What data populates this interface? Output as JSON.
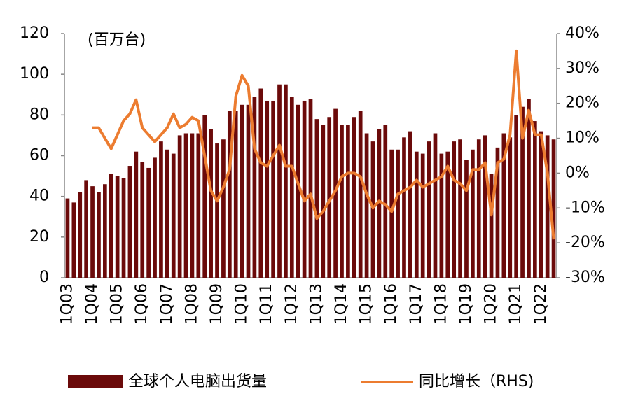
{
  "chart_data": {
    "type": "bar_line",
    "unit_label": "(百万台)",
    "categories": [
      "1Q03",
      null,
      null,
      null,
      "1Q04",
      null,
      null,
      null,
      "1Q05",
      null,
      null,
      null,
      "1Q06",
      null,
      null,
      null,
      "1Q07",
      null,
      null,
      null,
      "1Q08",
      null,
      null,
      null,
      "1Q09",
      null,
      null,
      null,
      "1Q10",
      null,
      null,
      null,
      "1Q11",
      null,
      null,
      null,
      "1Q12",
      null,
      null,
      null,
      "1Q13",
      null,
      null,
      null,
      "1Q14",
      null,
      null,
      null,
      "1Q15",
      null,
      null,
      null,
      "1Q16",
      null,
      null,
      null,
      "1Q17",
      null,
      null,
      null,
      "1Q18",
      null,
      null,
      null,
      "1Q19",
      null,
      null,
      null,
      "1Q20",
      null,
      null,
      null,
      "1Q21",
      null,
      null,
      null,
      "1Q22",
      null,
      null
    ],
    "series": [
      {
        "name": "全球个人电脑出货量",
        "color": "#6b0a0a",
        "type": "bar",
        "values": [
          39,
          37,
          42,
          48,
          45,
          42,
          46,
          51,
          50,
          49,
          55,
          62,
          57,
          54,
          59,
          67,
          63,
          61,
          70,
          71,
          71,
          71,
          80,
          73,
          66,
          68,
          82,
          82,
          85,
          85,
          89,
          93,
          87,
          87,
          95,
          95,
          89,
          85,
          87,
          88,
          78,
          75,
          79,
          83,
          75,
          75,
          79,
          82,
          71,
          67,
          73,
          75,
          63,
          63,
          69,
          72,
          62,
          61,
          67,
          71,
          61,
          62,
          67,
          68,
          58,
          63,
          68,
          70,
          51,
          64,
          71,
          69,
          80,
          84,
          88,
          77,
          72,
          70,
          68
        ]
      },
      {
        "name": "同比增长（RHS)",
        "color": "#ec7c30",
        "type": "line",
        "axis": "y2",
        "values": [
          null,
          null,
          null,
          null,
          13,
          13,
          10,
          7,
          11,
          15,
          17,
          21,
          13,
          11,
          9,
          11,
          13,
          17,
          13,
          14,
          16,
          15,
          5,
          -5,
          -8,
          -4,
          1,
          22,
          28,
          25,
          7,
          3,
          2,
          5,
          8,
          2,
          2,
          -3,
          -8,
          -6,
          -13,
          -11,
          -8,
          -5,
          -1,
          0,
          0,
          -1,
          -6,
          -10,
          -8,
          -9,
          -11,
          -6,
          -5,
          -4,
          -2,
          -4,
          -3,
          -2,
          -1,
          2,
          -2,
          -3,
          -5,
          1,
          1,
          3,
          -12,
          3,
          4,
          11,
          35,
          10,
          18,
          11,
          11,
          0,
          -19
        ]
      }
    ],
    "ylim": [
      0,
      120
    ],
    "yticks": [
      0,
      20,
      40,
      60,
      80,
      100,
      120
    ],
    "y2lim": [
      -30,
      40
    ],
    "y2ticks": [
      {
        "value": -30,
        "label": "-30%"
      },
      {
        "value": -20,
        "label": "-20%"
      },
      {
        "value": -10,
        "label": "-10%"
      },
      {
        "value": 0,
        "label": "0%"
      },
      {
        "value": 10,
        "label": "10%"
      },
      {
        "value": 20,
        "label": "20%"
      },
      {
        "value": 30,
        "label": "30%"
      },
      {
        "value": 40,
        "label": "40%"
      }
    ],
    "legend": "bottom"
  }
}
